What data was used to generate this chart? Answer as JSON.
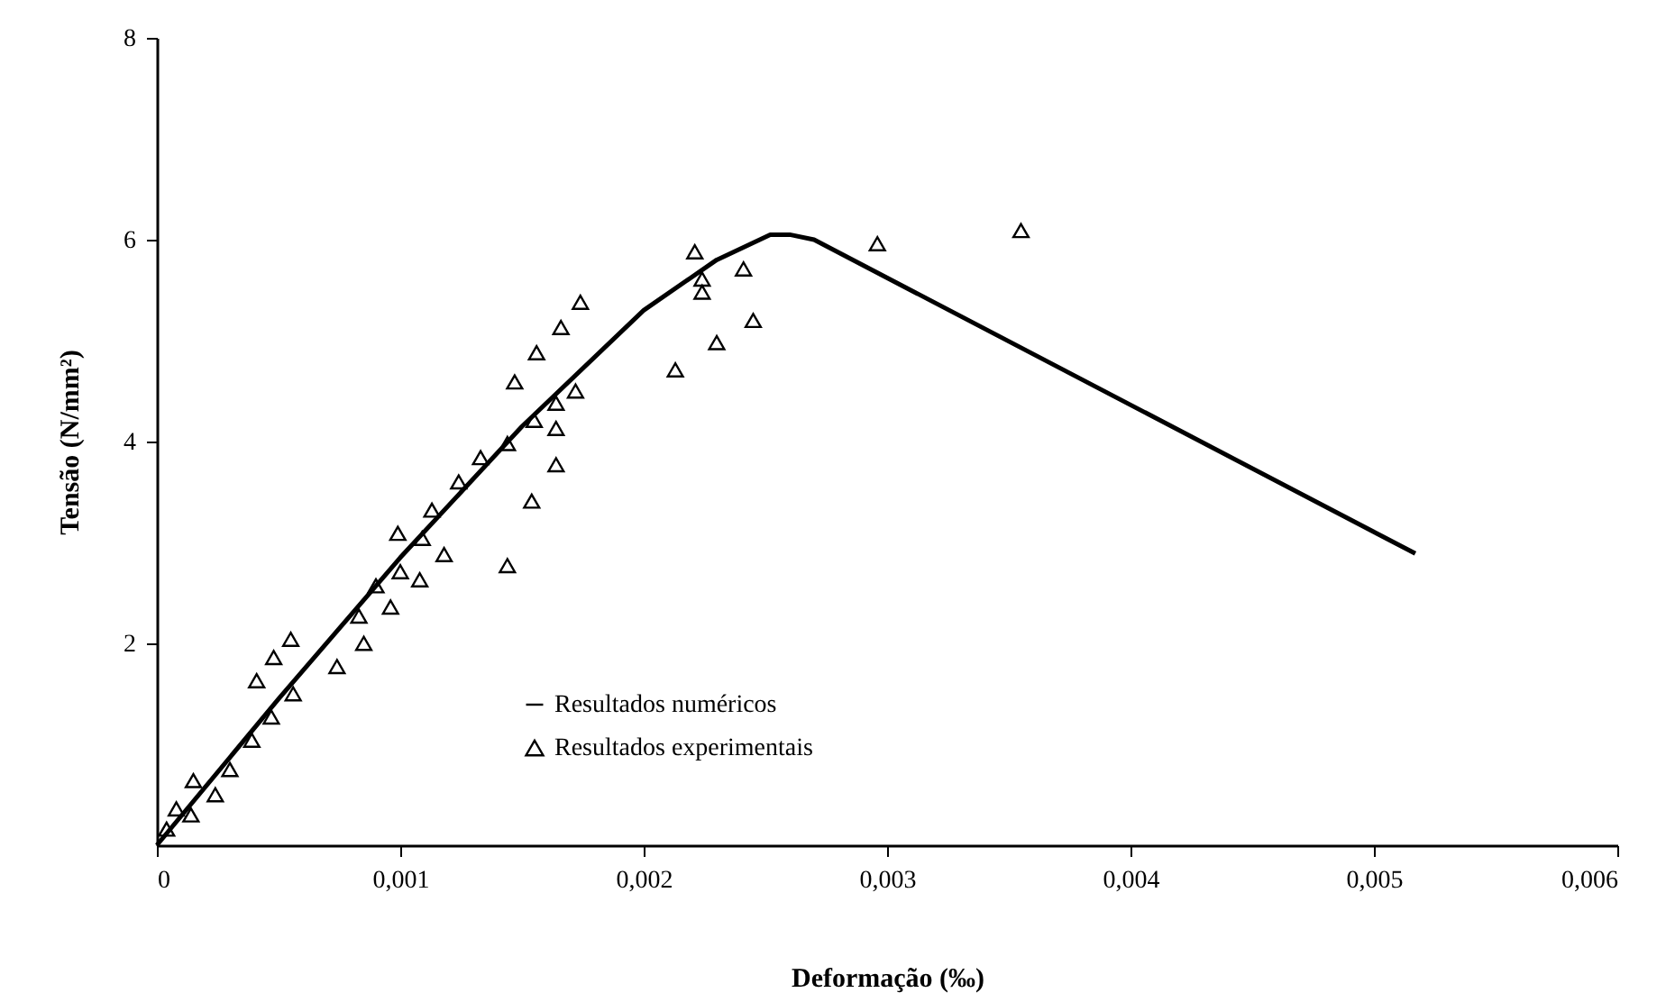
{
  "chart_data": {
    "type": "scatter",
    "xlabel": "Deformação (‰)",
    "ylabel": "Tensão (N/mm²)",
    "xlim": [
      0,
      0.006
    ],
    "xticks": [
      {
        "value": 0,
        "label": "0"
      },
      {
        "value": 0.001,
        "label": "0,001"
      },
      {
        "value": 0.002,
        "label": "0,002"
      },
      {
        "value": 0.003,
        "label": "0,003"
      },
      {
        "value": 0.004,
        "label": "0,004"
      },
      {
        "value": 0.005,
        "label": "0,005"
      },
      {
        "value": 0.006,
        "label": "0,006"
      }
    ],
    "ylim": [
      0,
      8
    ],
    "yticks": [
      2,
      4,
      6,
      8
    ],
    "grid": false,
    "legend": "bottom left",
    "series": [
      {
        "name": "Resultados numéricos",
        "type": "line",
        "color": "#000000",
        "marker": "none",
        "line_style": "solid",
        "x": [
          0,
          0.0005,
          0.001,
          0.0015,
          0.002,
          0.0023,
          0.00252,
          0.0026,
          0.0027,
          0.00517
        ],
        "values": [
          0,
          1.45,
          2.85,
          4.15,
          5.3,
          5.8,
          6.05,
          6.05,
          6.0,
          2.89
        ]
      },
      {
        "name": "Resultados experimentais",
        "color": "#000000",
        "marker": "triangle",
        "x": [
          4e-05,
          8e-05,
          0.00014,
          0.00015,
          0.00024,
          0.0003,
          0.00039,
          0.00041,
          0.00047,
          0.00048,
          0.00055,
          0.00056,
          0.00074,
          0.00083,
          0.00085,
          0.0009,
          0.00096,
          0.00099,
          0.001,
          0.00108,
          0.00109,
          0.00113,
          0.00118,
          0.00124,
          0.00133,
          0.00144,
          0.00144,
          0.00147,
          0.00154,
          0.00155,
          0.00156,
          0.00164,
          0.00164,
          0.00164,
          0.00166,
          0.00172,
          0.00174,
          0.00213,
          0.00221,
          0.00224,
          0.00224,
          0.0023,
          0.00241,
          0.00245,
          0.00296,
          0.00355
        ],
        "values": [
          0.16,
          0.36,
          0.3,
          0.64,
          0.5,
          0.75,
          1.04,
          1.63,
          1.27,
          1.86,
          2.04,
          1.5,
          1.77,
          2.27,
          2.0,
          2.57,
          2.36,
          3.09,
          2.71,
          2.63,
          3.04,
          3.32,
          2.88,
          3.6,
          3.84,
          2.77,
          3.98,
          4.59,
          3.41,
          4.21,
          4.88,
          3.77,
          4.13,
          4.38,
          5.13,
          4.5,
          5.38,
          4.71,
          5.88,
          5.61,
          5.48,
          4.98,
          5.71,
          5.2,
          5.96,
          6.09
        ]
      }
    ]
  }
}
